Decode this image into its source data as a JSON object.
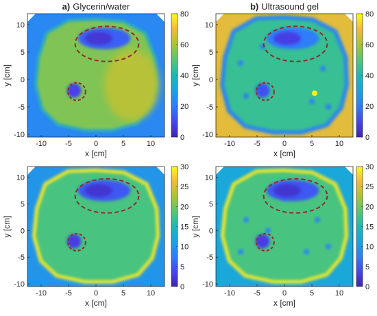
{
  "chart_data": [
    {
      "type": "heatmap",
      "title_prefix": "a)",
      "title": "Glycerin/water",
      "xlabel": "x [cm]",
      "ylabel": "y [cm]",
      "xlim": [
        -12.5,
        12.5
      ],
      "ylim": [
        -10.5,
        12
      ],
      "xticks": [
        -10,
        -5,
        0,
        5,
        10
      ],
      "yticks": [
        10,
        5,
        0,
        -5,
        -10
      ],
      "colorbar": {
        "min": 0,
        "max": 80,
        "ticks": [
          80,
          60,
          40,
          20,
          0
        ]
      },
      "background_value": 23,
      "body_value": 55,
      "inclusion_value": 15
    },
    {
      "type": "heatmap",
      "title_prefix": "b)",
      "title": "Ultrasound gel",
      "xlabel": "x [cm]",
      "ylabel": "y [cm]",
      "xlim": [
        -12.5,
        12.5
      ],
      "ylim": [
        -10.5,
        12
      ],
      "xticks": [
        -10,
        -5,
        0,
        5,
        10
      ],
      "yticks": [
        10,
        5,
        0,
        -5,
        -10
      ],
      "colorbar": {
        "min": 0,
        "max": 80,
        "ticks": [
          80,
          60,
          40,
          20,
          0
        ]
      },
      "background_value": 68,
      "body_value": 45,
      "inclusion_value": 20
    },
    {
      "type": "heatmap",
      "title": "",
      "xlabel": "x [cm]",
      "ylabel": "y [cm]",
      "xlim": [
        -12.5,
        12.5
      ],
      "ylim": [
        -10.5,
        12
      ],
      "xticks": [
        -10,
        -5,
        0,
        5,
        10
      ],
      "yticks": [
        10,
        5,
        0,
        -5,
        -10
      ],
      "colorbar": {
        "min": 0,
        "max": 30,
        "ticks": [
          30,
          25,
          20,
          15,
          10,
          5,
          0
        ]
      },
      "background_value": 10,
      "body_value": 18,
      "inclusion_value": 5
    },
    {
      "type": "heatmap",
      "title": "",
      "xlabel": "x [cm]",
      "ylabel": "y [cm]",
      "xlim": [
        -12.5,
        12.5
      ],
      "ylim": [
        -10.5,
        12
      ],
      "xticks": [
        -10,
        -5,
        0,
        5,
        10
      ],
      "yticks": [
        10,
        5,
        0,
        -5,
        -10
      ],
      "colorbar": {
        "min": 0,
        "max": 30,
        "ticks": [
          30,
          25,
          20,
          15,
          10,
          5,
          0
        ]
      },
      "background_value": 12,
      "body_value": 18,
      "inclusion_value": 5
    }
  ]
}
